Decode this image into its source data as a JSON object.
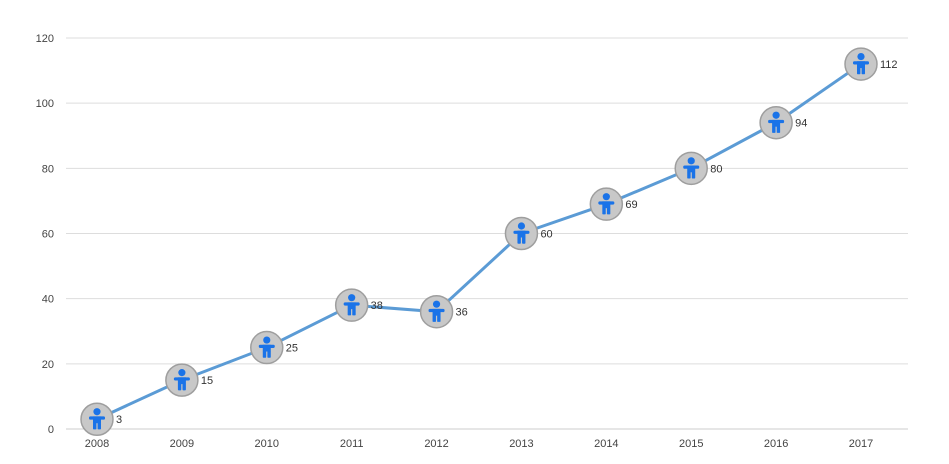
{
  "chart_data": {
    "type": "line",
    "title": "",
    "xlabel": "",
    "ylabel": "",
    "categories": [
      "2008",
      "2009",
      "2010",
      "2011",
      "2012",
      "2013",
      "2014",
      "2015",
      "2016",
      "2017"
    ],
    "series": [
      {
        "values": [
          3,
          15,
          25,
          38,
          36,
          60,
          69,
          80,
          94,
          112
        ],
        "color": "#5b9bd5",
        "marker": "person-icon",
        "marker_background": "#c8c8c8",
        "marker_icon_color": "#1a73e8"
      }
    ],
    "data_labels": [
      "3",
      "15",
      "25",
      "38",
      "36",
      "60",
      "69",
      "80",
      "94",
      "112"
    ],
    "ylim": [
      0,
      120
    ],
    "yticks": [
      0,
      20,
      40,
      60,
      80,
      100,
      120
    ],
    "ytick_labels": [
      "0",
      "20",
      "40",
      "60",
      "80",
      "100",
      "120"
    ],
    "grid": true,
    "legend": "none"
  }
}
